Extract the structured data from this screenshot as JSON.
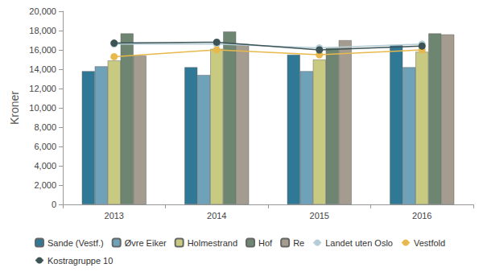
{
  "chart_data": {
    "type": "bar",
    "y_label": "Kroner",
    "categories": [
      "2013",
      "2014",
      "2015",
      "2016"
    ],
    "ylim": [
      0,
      20000
    ],
    "yticks": [
      0,
      2000,
      4000,
      6000,
      8000,
      10000,
      12000,
      14000,
      16000,
      18000,
      20000
    ],
    "grid": false,
    "legend": "bottom",
    "series": [
      {
        "name": "Sande (Vestf.)",
        "type": "bar",
        "color": "#2f7896",
        "values": [
          13800,
          14200,
          15500,
          16500
        ]
      },
      {
        "name": "Øvre Eiker",
        "type": "bar",
        "color": "#6fa2b9",
        "values": [
          14300,
          13400,
          13800,
          14200
        ]
      },
      {
        "name": "Holmestrand",
        "type": "bar",
        "color": "#c9ca82",
        "values": [
          14900,
          16100,
          15000,
          15800
        ]
      },
      {
        "name": "Hof",
        "type": "bar",
        "color": "#6e8671",
        "values": [
          17700,
          17900,
          16200,
          17700
        ]
      },
      {
        "name": "Re",
        "type": "bar",
        "color": "#a39c8f",
        "values": [
          15400,
          16600,
          17000,
          17600
        ]
      },
      {
        "name": "Landet uten Oslo",
        "type": "line",
        "marker": "circle",
        "color": "#b5cdd6",
        "values": [
          16600,
          16600,
          16200,
          16600
        ]
      },
      {
        "name": "Vestfold",
        "type": "line",
        "marker": "circle",
        "color": "#e7b94c",
        "values": [
          15300,
          16000,
          15500,
          16000
        ]
      },
      {
        "name": "Kostragruppe 10",
        "type": "line",
        "marker": "circle",
        "color": "#3d5456",
        "values": [
          16700,
          16800,
          16000,
          16400
        ]
      }
    ]
  }
}
